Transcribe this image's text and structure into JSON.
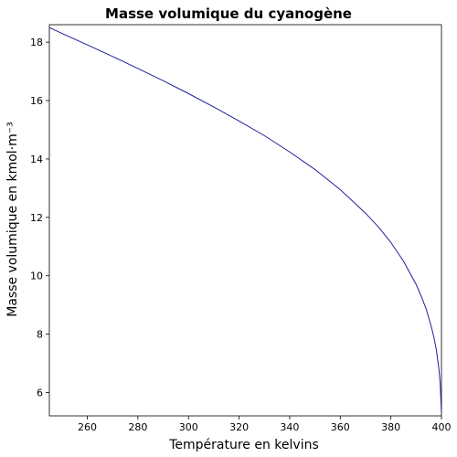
{
  "chart_data": {
    "type": "line",
    "title": "Masse volumique du cyanogène",
    "xlabel": "Température en kelvins",
    "ylabel": "Masse volumique en kmol·m⁻³",
    "xlim": [
      245,
      400
    ],
    "ylim": [
      5.2,
      18.6
    ],
    "x_ticks": [
      260,
      280,
      300,
      320,
      340,
      360,
      380,
      400
    ],
    "y_ticks": [
      6,
      8,
      10,
      12,
      14,
      16,
      18
    ],
    "grid": false,
    "series": [
      {
        "color": "#1f1f9a",
        "x": [
          245,
          250,
          260,
          270,
          280,
          290,
          300,
          310,
          320,
          330,
          340,
          350,
          360,
          370,
          375,
          380,
          385,
          390,
          392,
          394,
          396,
          397,
          398,
          399,
          399.5,
          400
        ],
        "y": [
          18.5,
          18.3,
          17.91,
          17.51,
          17.1,
          16.68,
          16.24,
          15.78,
          15.3,
          14.8,
          14.24,
          13.64,
          12.95,
          12.14,
          11.68,
          11.14,
          10.5,
          9.7,
          9.3,
          8.85,
          8.25,
          7.9,
          7.45,
          6.8,
          6.3,
          5.3
        ]
      }
    ]
  }
}
